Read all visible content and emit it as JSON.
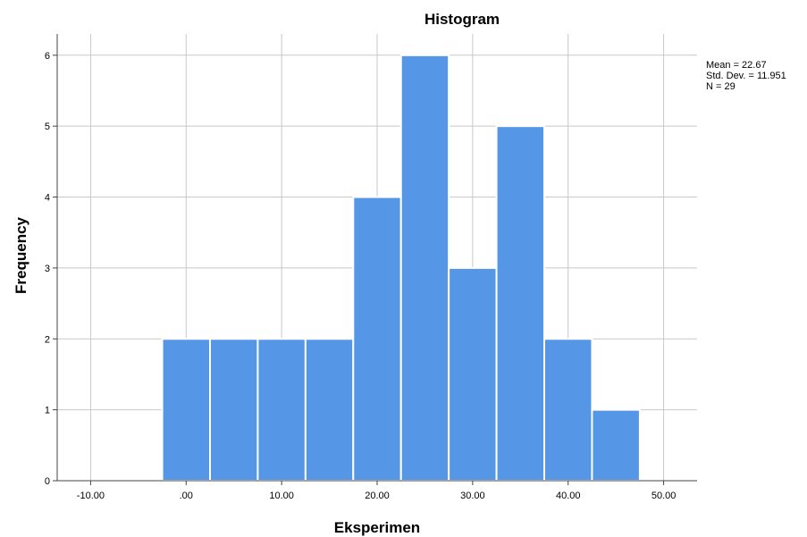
{
  "chart_data": {
    "type": "bar",
    "title": "Histogram",
    "xlabel": "Eksperimen",
    "ylabel": "Frequency",
    "bins": [
      {
        "start": -2.5,
        "end": 2.5,
        "value": 2
      },
      {
        "start": 2.5,
        "end": 7.5,
        "value": 2
      },
      {
        "start": 7.5,
        "end": 12.5,
        "value": 2
      },
      {
        "start": 12.5,
        "end": 17.5,
        "value": 2
      },
      {
        "start": 17.5,
        "end": 22.5,
        "value": 4
      },
      {
        "start": 22.5,
        "end": 27.5,
        "value": 6
      },
      {
        "start": 27.5,
        "end": 32.5,
        "value": 3
      },
      {
        "start": 32.5,
        "end": 37.5,
        "value": 5
      },
      {
        "start": 37.5,
        "end": 42.5,
        "value": 2
      },
      {
        "start": 42.5,
        "end": 47.5,
        "value": 1
      }
    ],
    "xlim": [
      -13.5,
      53.5
    ],
    "ylim": [
      0,
      6.3
    ],
    "x_ticks": [
      -10,
      0,
      10,
      20,
      30,
      40,
      50
    ],
    "x_tick_labels": [
      "-10.00",
      ".00",
      "10.00",
      "20.00",
      "30.00",
      "40.00",
      "50.00"
    ],
    "y_ticks": [
      0,
      1,
      2,
      3,
      4,
      5,
      6
    ],
    "y_tick_labels": [
      "0",
      "1",
      "2",
      "3",
      "4",
      "5",
      "6"
    ],
    "grid": true,
    "bar_color": "#5596e6",
    "grid_color": "#c8c8c8",
    "stats": {
      "mean": "Mean = 22.67",
      "std": "Std. Dev. = 11.951",
      "n": "N = 29"
    }
  }
}
